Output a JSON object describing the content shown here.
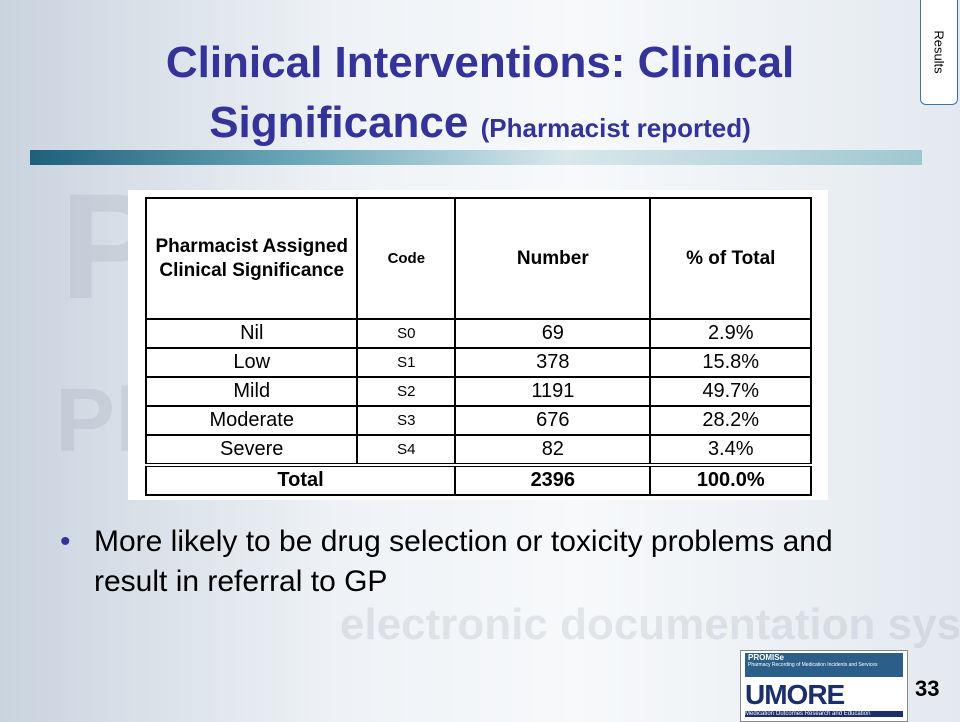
{
  "tab": "Results",
  "title": {
    "line1": "Clinical Interventions: Clinical",
    "line2": "Significance",
    "note": "(Pharmacist reported)"
  },
  "watermark": [
    "PROMISe",
    "Pharmacy",
    "electronic documentation system"
  ],
  "table": {
    "header": [
      "Pharmacist Assigned Clinical Significance",
      "Code",
      "Number",
      "% of Total"
    ],
    "rows": [
      [
        "Nil",
        "S0",
        "69",
        "2.9%"
      ],
      [
        "Low",
        "S1",
        "378",
        "15.8%"
      ],
      [
        "Mild",
        "S2",
        "1191",
        "49.7%"
      ],
      [
        "Moderate",
        "S3",
        "676",
        "28.2%"
      ],
      [
        "Severe",
        "S4",
        "82",
        "3.4%"
      ]
    ],
    "total": [
      "Total",
      "2396",
      "100.0%"
    ]
  },
  "bullets": [
    "More likely to be drug selection or toxicity problems and result in referral to GP"
  ],
  "page_number": "33",
  "logo": {
    "promise": "PROMISe",
    "promise_sub": "Pharmacy Recording of Medication Incidents and Services",
    "umore": "UMORE",
    "umore_sub": "Medication Outcomes Research and Education"
  }
}
